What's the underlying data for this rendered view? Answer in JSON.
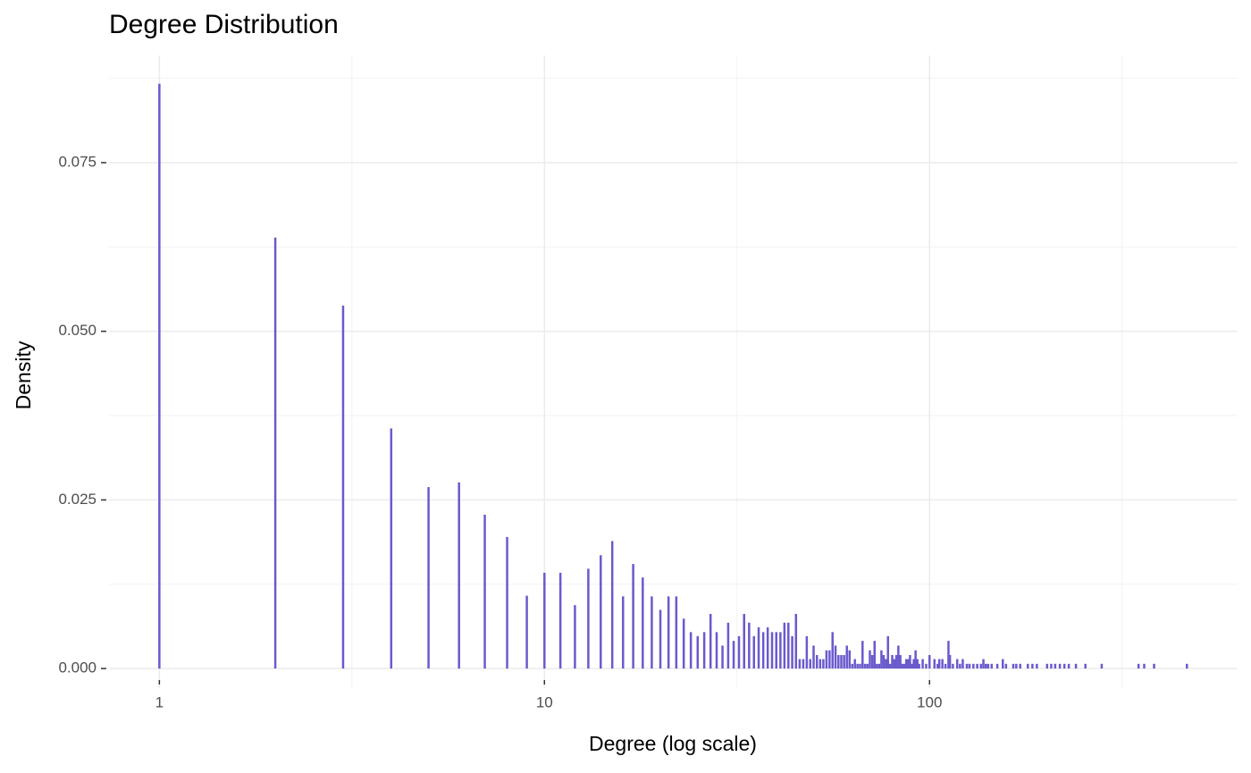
{
  "chart_data": {
    "type": "bar",
    "title": "Degree Distribution",
    "x_label": "Degree (log scale)",
    "y_label": "Density",
    "color": "#6a5acd",
    "xscale": "log",
    "grid": true,
    "minor_grid": true,
    "xlim": [
      0.74,
      631
    ],
    "xticks": [
      1,
      10,
      100
    ],
    "ylim": [
      -0.0029,
      0.0909
    ],
    "yticks": [
      {
        "value": 0,
        "label": "0.000"
      },
      0.025,
      {
        "value": 0.05,
        "label": "0.050"
      },
      0.075
    ],
    "x": [
      1,
      2,
      3,
      4,
      5,
      6,
      7,
      8,
      9,
      10,
      11,
      12,
      13,
      14,
      15,
      16,
      17,
      18,
      19,
      20,
      21,
      22,
      23,
      24,
      25,
      26,
      27,
      28,
      29,
      30,
      31,
      32,
      33,
      34,
      35,
      36,
      37,
      38,
      39,
      40,
      41,
      42,
      43,
      44,
      45,
      46,
      47,
      48,
      49,
      50,
      51,
      52,
      53,
      54,
      55,
      56,
      57,
      58,
      59,
      60,
      61,
      62,
      63,
      64,
      65,
      66,
      67,
      68,
      69,
      70,
      71,
      72,
      73,
      74,
      75,
      76,
      77,
      78,
      79,
      80,
      81,
      82,
      83,
      84,
      85,
      86,
      87,
      88,
      89,
      90,
      91,
      92,
      93,
      94,
      96,
      98,
      100,
      103,
      105,
      106,
      108,
      110,
      112,
      113,
      115,
      118,
      120,
      122,
      125,
      127,
      130,
      133,
      136,
      138,
      140,
      142,
      145,
      150,
      155,
      158,
      165,
      168,
      172,
      180,
      185,
      190,
      202,
      207,
      212,
      218,
      224,
      230,
      240,
      254,
      280,
      349,
      361,
      383,
      466
    ],
    "values": [
      0.0867,
      0.0639,
      0.0538,
      0.0356,
      0.0269,
      0.0276,
      0.0228,
      0.0195,
      0.0108,
      0.0142,
      0.0142,
      0.0094,
      0.0148,
      0.0168,
      0.0189,
      0.0107,
      0.0155,
      0.0135,
      0.0107,
      0.0087,
      0.0107,
      0.0107,
      0.0074,
      0.0054,
      0.0048,
      0.0054,
      0.0081,
      0.0054,
      0.0034,
      0.0068,
      0.0041,
      0.0048,
      0.0081,
      0.0068,
      0.0048,
      0.0061,
      0.0054,
      0.0061,
      0.0054,
      0.0054,
      0.0054,
      0.0068,
      0.0068,
      0.0048,
      0.0081,
      0.0014,
      0.0014,
      0.0048,
      0.0014,
      0.0034,
      0.002,
      0.0014,
      0.0014,
      0.0027,
      0.0027,
      0.0054,
      0.0034,
      0.002,
      0.002,
      0.002,
      0.0034,
      0.0027,
      0.0007,
      0.0014,
      0.0007,
      0.0007,
      0.0041,
      0.0007,
      0.0007,
      0.0027,
      0.002,
      0.0041,
      0.0007,
      0.0007,
      0.0027,
      0.002,
      0.0014,
      0.0048,
      0.0007,
      0.002,
      0.0014,
      0.002,
      0.0034,
      0.002,
      0.0007,
      0.0007,
      0.0014,
      0.0014,
      0.002,
      0.0007,
      0.0014,
      0.0027,
      0.0014,
      0.0007,
      0.0014,
      0.0007,
      0.002,
      0.0014,
      0.0007,
      0.0014,
      0.0014,
      0.0007,
      0.0041,
      0.002,
      0.0007,
      0.0014,
      0.0007,
      0.0014,
      0.0007,
      0.0007,
      0.0007,
      0.0007,
      0.0007,
      0.0014,
      0.0007,
      0.0007,
      0.0007,
      0.0007,
      0.0014,
      0.0007,
      0.0007,
      0.0007,
      0.0007,
      0.0007,
      0.0007,
      0.0007,
      0.0007,
      0.0007,
      0.0007,
      0.0007,
      0.0007,
      0.0007,
      0.0007,
      0.0007,
      0.0007,
      0.0007,
      0.0007,
      0.0007,
      0.0007
    ]
  }
}
